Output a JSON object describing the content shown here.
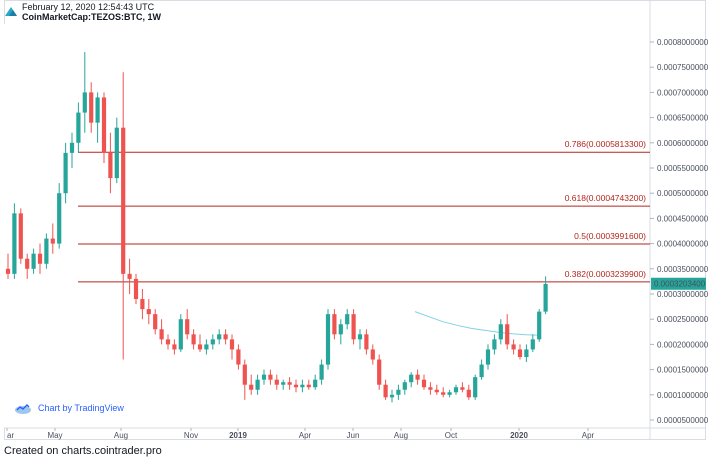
{
  "header": {
    "date": "February 12, 2020 12:54:43 UTC",
    "symbol": "CoinMarketCap:TEZOS:BTC, 1W"
  },
  "watermark": "Chart by TradingView",
  "footer": "Created on charts.cointrader.pro",
  "colors": {
    "up": "#26a69a",
    "down": "#ef5350",
    "fib": "#b3261e",
    "ma": "#7fd3e0",
    "price_tag": "#26a69a"
  },
  "chart_data": {
    "type": "candlestick",
    "y_range": [
      5e-05,
      0.00082
    ],
    "y_ticks": [
      "0.0000500000",
      "0.0001000000",
      "0.0001500000",
      "0.0002000000",
      "0.0002500000",
      "0.0003000000",
      "0.0003500000",
      "0.0004000000",
      "0.0004500000",
      "0.0005000000",
      "0.0005500000",
      "0.0006000000",
      "0.0006500000",
      "0.0007000000",
      "0.0007500000",
      "0.0008000000"
    ],
    "x_labels": [
      "ar",
      "May",
      "Aug",
      "Nov",
      "2019",
      "Apr",
      "Jun",
      "Aug",
      "Oct",
      "2020",
      "Apr"
    ],
    "bold_x_labels": [
      "2019",
      "2020"
    ],
    "current_price": "0.0003203400",
    "fib_levels": [
      {
        "label": "0.786(0.0005813300)",
        "value": 0.00058133
      },
      {
        "label": "0.618(0.0004743200)",
        "value": 0.00047432
      },
      {
        "label": "0.5(0.0003991600)",
        "value": 0.00039916
      },
      {
        "label": "0.382(0.0003239900)",
        "value": 0.00032399
      }
    ],
    "candles": [
      [
        0.00035,
        0.00038,
        0.00033,
        0.00034
      ],
      [
        0.00034,
        0.00048,
        0.00033,
        0.00046
      ],
      [
        0.00046,
        0.00047,
        0.00036,
        0.00037
      ],
      [
        0.00037,
        0.00038,
        0.00033,
        0.00035
      ],
      [
        0.00035,
        0.00039,
        0.00034,
        0.00038
      ],
      [
        0.00038,
        0.0004,
        0.00034,
        0.00036
      ],
      [
        0.00036,
        0.00042,
        0.00035,
        0.00041
      ],
      [
        0.00041,
        0.00044,
        0.00038,
        0.0004
      ],
      [
        0.0004,
        0.00052,
        0.00039,
        0.0005
      ],
      [
        0.0005,
        0.0006,
        0.00048,
        0.00058
      ],
      [
        0.00058,
        0.00062,
        0.00055,
        0.0006
      ],
      [
        0.0006,
        0.00068,
        0.00058,
        0.00066
      ],
      [
        0.00066,
        0.00078,
        0.00062,
        0.0007
      ],
      [
        0.0007,
        0.00072,
        0.00062,
        0.00064
      ],
      [
        0.00064,
        0.0007,
        0.0006,
        0.00069
      ],
      [
        0.00069,
        0.0007,
        0.00056,
        0.00058
      ],
      [
        0.00058,
        0.00062,
        0.0005,
        0.00053
      ],
      [
        0.00053,
        0.00065,
        0.00052,
        0.00063
      ],
      [
        0.00063,
        0.00074,
        0.00017,
        0.00034
      ],
      [
        0.00034,
        0.00037,
        0.0003,
        0.00033
      ],
      [
        0.00033,
        0.00034,
        0.00028,
        0.00029
      ],
      [
        0.00029,
        0.00031,
        0.00025,
        0.00027
      ],
      [
        0.00027,
        0.00029,
        0.00024,
        0.00026
      ],
      [
        0.00026,
        0.00027,
        0.00022,
        0.00023
      ],
      [
        0.00023,
        0.00025,
        0.0002,
        0.00021
      ],
      [
        0.00021,
        0.00022,
        0.00019,
        0.0002
      ],
      [
        0.0002,
        0.00021,
        0.00018,
        0.00019
      ],
      [
        0.00019,
        0.00026,
        0.000185,
        0.00025
      ],
      [
        0.00025,
        0.00027,
        0.00021,
        0.00022
      ],
      [
        0.00022,
        0.00023,
        0.00019,
        0.0002
      ],
      [
        0.0002,
        0.00022,
        0.000185,
        0.00019
      ],
      [
        0.00019,
        0.00021,
        0.00018,
        0.0002
      ],
      [
        0.0002,
        0.00022,
        0.00019,
        0.00021
      ],
      [
        0.00021,
        0.00023,
        0.0002,
        0.00022
      ],
      [
        0.00022,
        0.00023,
        0.0002,
        0.00021
      ],
      [
        0.00021,
        0.00022,
        0.00017,
        0.00019
      ],
      [
        0.00019,
        0.0002,
        0.00015,
        0.00016
      ],
      [
        0.00016,
        0.00017,
        9e-05,
        0.00012
      ],
      [
        0.00012,
        0.00014,
        0.0001,
        0.00011
      ],
      [
        0.00011,
        0.00014,
        0.0001,
        0.00013
      ],
      [
        0.00013,
        0.00015,
        0.00012,
        0.00014
      ],
      [
        0.00014,
        0.00015,
        0.00012,
        0.00013
      ],
      [
        0.00013,
        0.00014,
        0.00011,
        0.00012
      ],
      [
        0.00012,
        0.00013,
        0.00011,
        0.000125
      ],
      [
        0.000125,
        0.000135,
        0.00011,
        0.00012
      ],
      [
        0.00012,
        0.00013,
        0.000105,
        0.000115
      ],
      [
        0.000115,
        0.00013,
        0.000105,
        0.00012
      ],
      [
        0.00012,
        0.00013,
        0.00011,
        0.000115
      ],
      [
        0.000115,
        0.00014,
        0.00011,
        0.00013
      ],
      [
        0.00013,
        0.00017,
        0.00012,
        0.00016
      ],
      [
        0.00016,
        0.00027,
        0.00015,
        0.00026
      ],
      [
        0.00026,
        0.00027,
        0.00021,
        0.00022
      ],
      [
        0.00022,
        0.00025,
        0.0002,
        0.00024
      ],
      [
        0.00024,
        0.00027,
        0.00023,
        0.00026
      ],
      [
        0.00026,
        0.00027,
        0.0002,
        0.00021
      ],
      [
        0.00021,
        0.00023,
        0.00019,
        0.00022
      ],
      [
        0.00022,
        0.00023,
        0.00018,
        0.00019
      ],
      [
        0.00019,
        0.0002,
        0.00016,
        0.00017
      ],
      [
        0.00017,
        0.00018,
        0.00011,
        0.00012
      ],
      [
        0.00012,
        0.00013,
        9e-05,
        9.5e-05
      ],
      [
        9.5e-05,
        0.00011,
        8.5e-05,
        0.0001
      ],
      [
        0.0001,
        0.00012,
        9e-05,
        0.00011
      ],
      [
        0.00011,
        0.00013,
        0.0001,
        0.000125
      ],
      [
        0.000125,
        0.000145,
        0.000115,
        0.00014
      ],
      [
        0.00014,
        0.00015,
        0.00012,
        0.00013
      ],
      [
        0.00013,
        0.00014,
        0.00011,
        0.000115
      ],
      [
        0.000115,
        0.000125,
        0.0001,
        0.00011
      ],
      [
        0.00011,
        0.00012,
        0.0001,
        0.000105
      ],
      [
        0.000105,
        0.000115,
        9.5e-05,
        0.0001
      ],
      [
        0.0001,
        0.00011,
        9.5e-05,
        0.000105
      ],
      [
        0.000105,
        0.00012,
        0.0001,
        0.000115
      ],
      [
        0.000115,
        0.000125,
        0.000105,
        0.00011
      ],
      [
        0.00011,
        0.00012,
        9e-05,
        9.5e-05
      ],
      [
        9.5e-05,
        0.00014,
        9e-05,
        0.000135
      ],
      [
        0.000135,
        0.00017,
        0.00013,
        0.00016
      ],
      [
        0.00016,
        0.0002,
        0.00015,
        0.00019
      ],
      [
        0.00019,
        0.00022,
        0.00018,
        0.00021
      ],
      [
        0.00021,
        0.00025,
        0.0002,
        0.00024
      ],
      [
        0.00024,
        0.00026,
        0.00019,
        0.0002
      ],
      [
        0.0002,
        0.00021,
        0.00018,
        0.00019
      ],
      [
        0.00019,
        0.0002,
        0.00017,
        0.000175
      ],
      [
        0.000175,
        0.0002,
        0.000165,
        0.00019
      ],
      [
        0.00019,
        0.00022,
        0.000185,
        0.00021
      ],
      [
        0.00021,
        0.00027,
        0.000205,
        0.000265
      ],
      [
        0.000265,
        0.000335,
        0.00026,
        0.00032
      ]
    ],
    "ma_line": [
      [
        0.000265
      ],
      [
        0.000255
      ],
      [
        0.000245
      ],
      [
        0.000238
      ],
      [
        0.000232
      ],
      [
        0.000228
      ],
      [
        0.000224
      ],
      [
        0.000221
      ],
      [
        0.000219
      ],
      [
        0.000218
      ]
    ]
  }
}
